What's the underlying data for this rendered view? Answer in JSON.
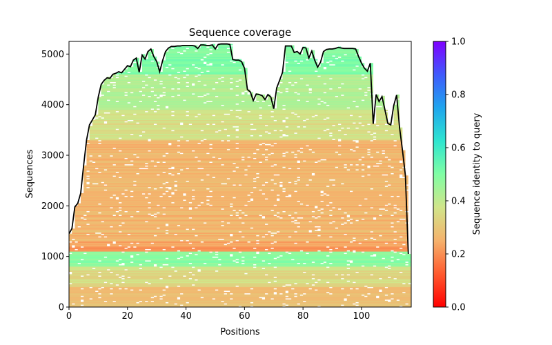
{
  "chart_data": {
    "type": "heatmap",
    "title": "Sequence coverage",
    "xlabel": "Positions",
    "ylabel": "Sequences",
    "xlim": [
      0,
      117
    ],
    "ylim": [
      0,
      5250
    ],
    "x_ticks": [
      0,
      20,
      40,
      60,
      80,
      100
    ],
    "y_ticks": [
      0,
      1000,
      2000,
      3000,
      4000,
      5000
    ],
    "colorbar": {
      "label": "Sequence identity to query",
      "range": [
        0.0,
        1.0
      ],
      "ticks": [
        "0.0",
        "0.2",
        "0.4",
        "0.6",
        "0.8",
        "1.0"
      ],
      "colormap": "rainbow_r"
    },
    "heatmap_description": {
      "bands": [
        {
          "seq_range": [
            0,
            400
          ],
          "identity": 0.28
        },
        {
          "seq_range": [
            400,
            800
          ],
          "identity": 0.35
        },
        {
          "seq_range": [
            800,
            1100
          ],
          "identity": 0.48
        },
        {
          "seq_range": [
            1100,
            1300
          ],
          "identity": 0.22
        },
        {
          "seq_range": [
            1300,
            3300
          ],
          "identity": 0.26
        },
        {
          "seq_range": [
            3300,
            3900
          ],
          "identity": 0.36
        },
        {
          "seq_range": [
            3900,
            4600
          ],
          "identity": 0.42
        },
        {
          "seq_range": [
            4600,
            5200
          ],
          "identity": 0.5
        }
      ]
    },
    "series": [
      {
        "style": "line",
        "color": "#000000",
        "x": [
          0,
          1,
          2,
          3,
          4,
          5,
          6,
          7,
          8,
          9,
          10,
          11,
          12,
          13,
          14,
          15,
          16,
          17,
          18,
          19,
          20,
          21,
          22,
          23,
          24,
          25,
          26,
          27,
          28,
          29,
          30,
          31,
          32,
          33,
          34,
          35,
          36,
          37,
          38,
          39,
          40,
          41,
          42,
          43,
          44,
          45,
          46,
          47,
          48,
          49,
          50,
          51,
          52,
          53,
          54,
          55,
          56,
          57,
          58,
          59,
          60,
          61,
          62,
          63,
          64,
          65,
          66,
          67,
          68,
          69,
          70,
          71,
          72,
          73,
          74,
          75,
          76,
          77,
          78,
          79,
          80,
          81,
          82,
          83,
          84,
          85,
          86,
          87,
          88,
          89,
          90,
          91,
          92,
          93,
          94,
          95,
          96,
          97,
          98,
          99,
          100,
          101,
          102,
          103,
          104,
          105,
          106,
          107,
          108,
          109,
          110,
          111,
          112,
          113,
          114,
          115,
          116
        ],
        "y": [
          1450,
          1550,
          1980,
          2050,
          2250,
          2800,
          3300,
          3600,
          3700,
          3800,
          4150,
          4400,
          4480,
          4530,
          4520,
          4600,
          4620,
          4650,
          4630,
          4700,
          4770,
          4750,
          4880,
          4920,
          4640,
          4980,
          4900,
          5050,
          5100,
          4950,
          4850,
          4650,
          4870,
          5050,
          5120,
          5150,
          5150,
          5160,
          5160,
          5170,
          5170,
          5170,
          5170,
          5160,
          5110,
          5180,
          5180,
          5170,
          5170,
          5180,
          5100,
          5190,
          5200,
          5200,
          5200,
          5190,
          4890,
          4880,
          4880,
          4850,
          4720,
          4300,
          4250,
          4080,
          4210,
          4200,
          4180,
          4100,
          4200,
          4150,
          3920,
          4330,
          4480,
          4640,
          5160,
          5160,
          5160,
          5030,
          5050,
          5000,
          5130,
          5120,
          4920,
          5060,
          4880,
          4740,
          4840,
          5050,
          5090,
          5100,
          5100,
          5110,
          5130,
          5120,
          5110,
          5110,
          5110,
          5110,
          5100,
          4950,
          4820,
          4720,
          4660,
          4820,
          3620,
          4200,
          4060,
          4160,
          3900,
          3630,
          3600,
          3980,
          4190,
          3550,
          3100,
          2600,
          1050
        ]
      }
    ]
  }
}
